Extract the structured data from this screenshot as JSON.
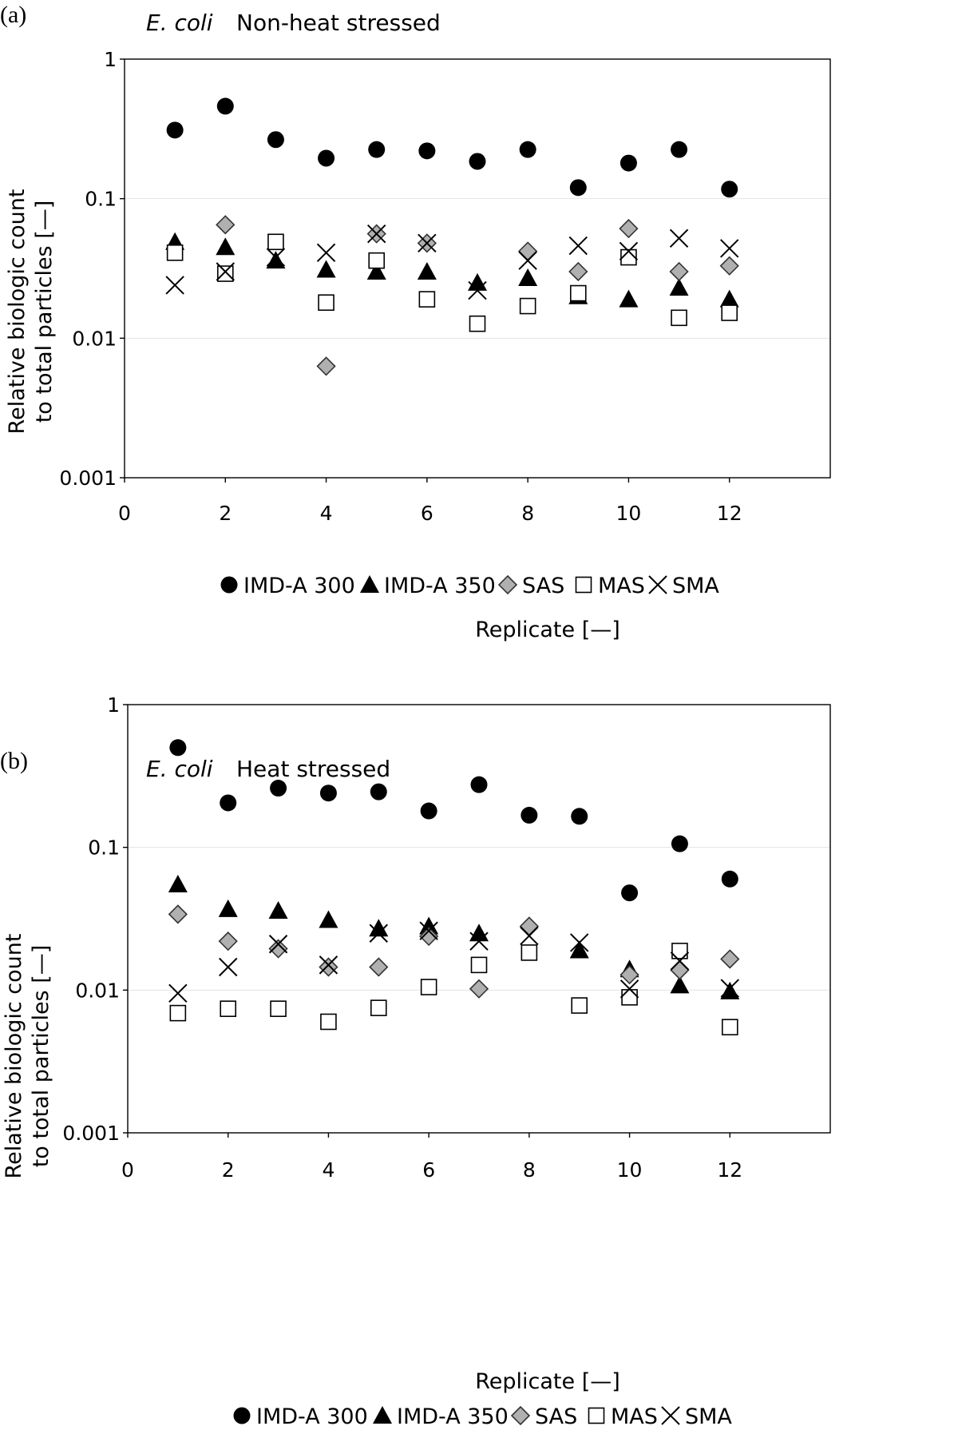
{
  "chart_data": [
    {
      "type": "scatter",
      "panel_label": "(a)",
      "title_organism": "E. coli",
      "title": "Non-heat stressed",
      "xlabel": "Replicate [—]",
      "ylabel_line1": "Relative biologic count",
      "ylabel_line2": "to total particles [—]",
      "xlim": [
        0,
        14
      ],
      "ylim": [
        0.001,
        1
      ],
      "yscale": "log",
      "xticks": [
        "0",
        "2",
        "4",
        "6",
        "8",
        "10",
        "12"
      ],
      "yticks": [
        "0.001",
        "0.01",
        "0.1",
        "1"
      ],
      "grid": "horizontal",
      "legend_position": "bottom",
      "x": [
        1,
        2,
        3,
        4,
        5,
        6,
        7,
        8,
        9,
        10,
        11,
        12
      ],
      "series": [
        {
          "name": "IMD-A 300",
          "marker": "circle",
          "values": [
            0.31,
            0.46,
            0.265,
            0.195,
            0.225,
            0.22,
            0.185,
            0.225,
            0.12,
            0.18,
            0.225,
            0.117
          ]
        },
        {
          "name": "IMD-A 350",
          "marker": "triangle",
          "values": [
            0.049,
            0.045,
            0.036,
            0.031,
            0.03,
            0.03,
            0.025,
            0.027,
            0.02,
            0.019,
            0.023,
            0.019
          ]
        },
        {
          "name": "SAS",
          "marker": "diamond",
          "values": [
            null,
            0.065,
            null,
            0.0063,
            0.056,
            0.048,
            null,
            0.042,
            0.03,
            0.061,
            0.03,
            0.033
          ]
        },
        {
          "name": "MAS",
          "marker": "square",
          "values": [
            0.041,
            0.029,
            0.049,
            0.018,
            0.036,
            0.019,
            0.0127,
            0.017,
            0.021,
            0.038,
            0.014,
            0.0152
          ]
        },
        {
          "name": "SMA",
          "marker": "cross",
          "values": [
            0.024,
            0.03,
            0.038,
            0.041,
            0.056,
            0.048,
            0.022,
            0.036,
            0.046,
            0.042,
            0.052,
            0.044
          ]
        }
      ]
    },
    {
      "type": "scatter",
      "panel_label": "(b)",
      "title_organism": "E. coli",
      "title": "Heat stressed",
      "xlabel": "Replicate [—]",
      "ylabel_line1": "Relative biologic count",
      "ylabel_line2": "to total particles [—]",
      "xlim": [
        0,
        14
      ],
      "ylim": [
        0.001,
        1
      ],
      "yscale": "log",
      "xticks": [
        "0",
        "2",
        "4",
        "6",
        "8",
        "10",
        "12"
      ],
      "yticks": [
        "0.001",
        "0.01",
        "0.1",
        "1"
      ],
      "grid": "horizontal",
      "legend_position": "bottom",
      "x": [
        1,
        2,
        3,
        4,
        5,
        6,
        7,
        8,
        9,
        10,
        11,
        12
      ],
      "series": [
        {
          "name": "IMD-A 300",
          "marker": "circle",
          "values": [
            0.5,
            0.205,
            0.26,
            0.24,
            0.245,
            0.18,
            0.275,
            0.168,
            0.165,
            0.048,
            0.106,
            0.06
          ]
        },
        {
          "name": "IMD-A 350",
          "marker": "triangle",
          "values": [
            0.055,
            0.037,
            0.036,
            0.031,
            0.027,
            0.028,
            0.025,
            null,
            0.019,
            0.014,
            0.0108,
            0.0098
          ]
        },
        {
          "name": "SAS",
          "marker": "diamond",
          "values": [
            0.034,
            0.022,
            0.0195,
            0.0145,
            0.0145,
            0.0238,
            0.0102,
            0.028,
            null,
            0.0128,
            0.0138,
            0.0165
          ]
        },
        {
          "name": "MAS",
          "marker": "square",
          "values": [
            0.0069,
            0.0074,
            0.0074,
            0.006,
            0.0075,
            0.0105,
            0.015,
            0.0183,
            0.0078,
            0.0089,
            0.0188,
            0.0055
          ]
        },
        {
          "name": "SMA",
          "marker": "cross",
          "values": [
            0.0095,
            0.0145,
            0.021,
            0.015,
            0.025,
            0.026,
            0.022,
            0.024,
            0.0215,
            0.0102,
            0.016,
            0.0103
          ]
        }
      ]
    }
  ]
}
